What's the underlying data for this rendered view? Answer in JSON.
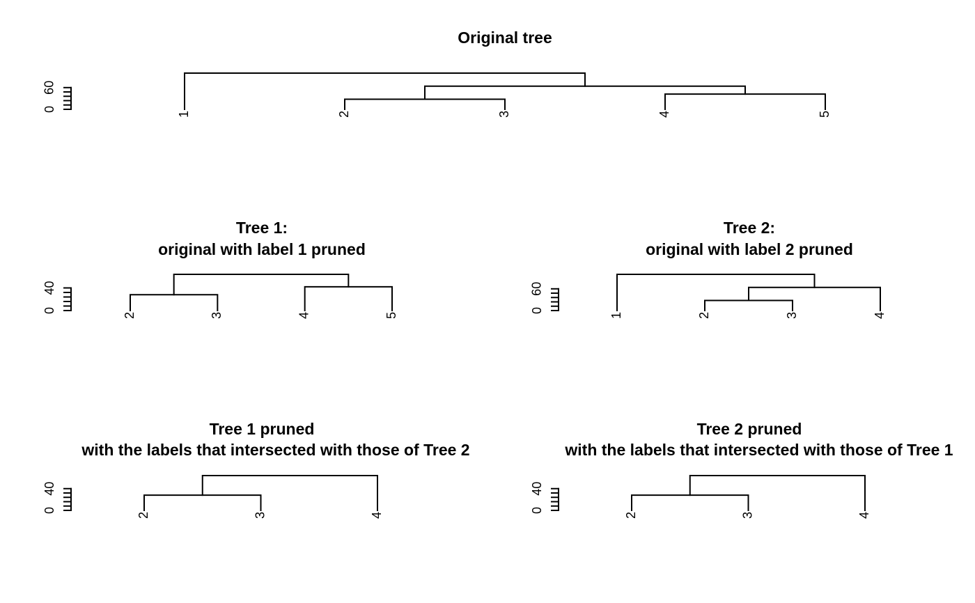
{
  "chart_data": [
    {
      "type": "dendrogram",
      "title": "Original tree",
      "subtitle": "",
      "leaves": [
        "1",
        "2",
        "3",
        "4",
        "5"
      ],
      "y_ticks": [
        0,
        60
      ],
      "y_tick_count": 6,
      "ylim": [
        0,
        100
      ],
      "merges": [
        {
          "left": "2",
          "right": "3",
          "height": 28
        },
        {
          "left": "4",
          "right": "5",
          "height": 42
        },
        {
          "left": "2-3",
          "right": "4-5",
          "height": 64
        },
        {
          "left": "1",
          "right": "2-3-4-5",
          "height": 100
        }
      ]
    },
    {
      "type": "dendrogram",
      "title": "Tree 1:",
      "subtitle": "original with label 1 pruned",
      "leaves": [
        "2",
        "3",
        "4",
        "5"
      ],
      "y_ticks": [
        0,
        40
      ],
      "y_tick_count": 6,
      "ylim": [
        0,
        64
      ],
      "merges": [
        {
          "left": "2",
          "right": "3",
          "height": 28
        },
        {
          "left": "4",
          "right": "5",
          "height": 42
        },
        {
          "left": "2-3",
          "right": "4-5",
          "height": 64
        }
      ]
    },
    {
      "type": "dendrogram",
      "title": "Tree 2:",
      "subtitle": "original with label 2 pruned",
      "leaves": [
        "1",
        "2",
        "3",
        "4"
      ],
      "y_ticks": [
        0,
        60
      ],
      "y_tick_count": 6,
      "ylim": [
        0,
        100
      ],
      "merges": [
        {
          "left": "2",
          "right": "3",
          "height": 28
        },
        {
          "left": "2-3",
          "right": "4",
          "height": 64
        },
        {
          "left": "1",
          "right": "2-3-4",
          "height": 100
        }
      ]
    },
    {
      "type": "dendrogram",
      "title": "Tree 1 pruned",
      "subtitle": "with the labels that intersected with those of Tree 2",
      "leaves": [
        "2",
        "3",
        "4"
      ],
      "y_ticks": [
        0,
        40
      ],
      "y_tick_count": 6,
      "ylim": [
        0,
        64
      ],
      "merges": [
        {
          "left": "2",
          "right": "3",
          "height": 28
        },
        {
          "left": "2-3",
          "right": "4",
          "height": 64
        }
      ]
    },
    {
      "type": "dendrogram",
      "title": "Tree 2 pruned",
      "subtitle": "with the labels that intersected with those of Tree 1",
      "leaves": [
        "2",
        "3",
        "4"
      ],
      "y_ticks": [
        0,
        40
      ],
      "y_tick_count": 6,
      "ylim": [
        0,
        64
      ],
      "merges": [
        {
          "left": "2",
          "right": "3",
          "height": 28
        },
        {
          "left": "2-3",
          "right": "4",
          "height": 64
        }
      ]
    }
  ]
}
